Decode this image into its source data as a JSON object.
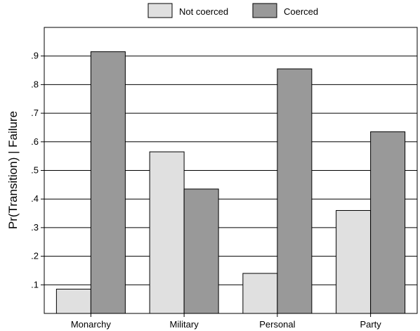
{
  "chart_data": {
    "type": "bar",
    "title": "",
    "xlabel": "",
    "ylabel": "Pr(Transition) | Failure",
    "categories": [
      "Monarchy",
      "Military",
      "Personal",
      "Party"
    ],
    "series": [
      {
        "name": "Not coerced",
        "values": [
          0.085,
          0.565,
          0.14,
          0.36
        ],
        "color": "#e0e0e0"
      },
      {
        "name": "Coerced",
        "values": [
          0.915,
          0.435,
          0.855,
          0.635
        ],
        "color": "#999999"
      }
    ],
    "ylim": [
      0,
      1.0
    ],
    "yticks": [
      0.1,
      0.2,
      0.3,
      0.4,
      0.5,
      0.6,
      0.7,
      0.8,
      0.9
    ],
    "ytick_labels": [
      ".1",
      ".2",
      ".3",
      ".4",
      ".5",
      ".6",
      ".7",
      ".8",
      ".9"
    ],
    "grid": "horizontal",
    "legend": "top-center"
  }
}
